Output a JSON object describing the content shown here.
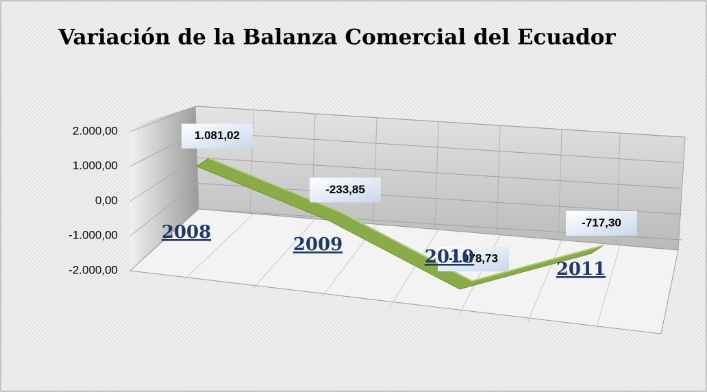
{
  "chart_data": {
    "type": "line3d",
    "title": "Variación de la Balanza Comercial del Ecuador",
    "categories": [
      "2008",
      "2009",
      "2010",
      "2011"
    ],
    "values": [
      1081.02,
      -233.85,
      -1978.73,
      -717.3
    ],
    "value_labels": [
      "1.081,02",
      "-233,85",
      "-1.978,73",
      "-717,30"
    ],
    "color": "#8aab4a",
    "ylim": [
      -2000,
      2000
    ],
    "yticks": [
      {
        "value": -2000,
        "label": "-2.000,00"
      },
      {
        "value": -1000,
        "label": "-1.000,00"
      },
      {
        "value": 0,
        "label": "0,00"
      },
      {
        "value": 1000,
        "label": "1.000,00"
      },
      {
        "value": 2000,
        "label": "2.000,00"
      }
    ],
    "grid": true
  }
}
